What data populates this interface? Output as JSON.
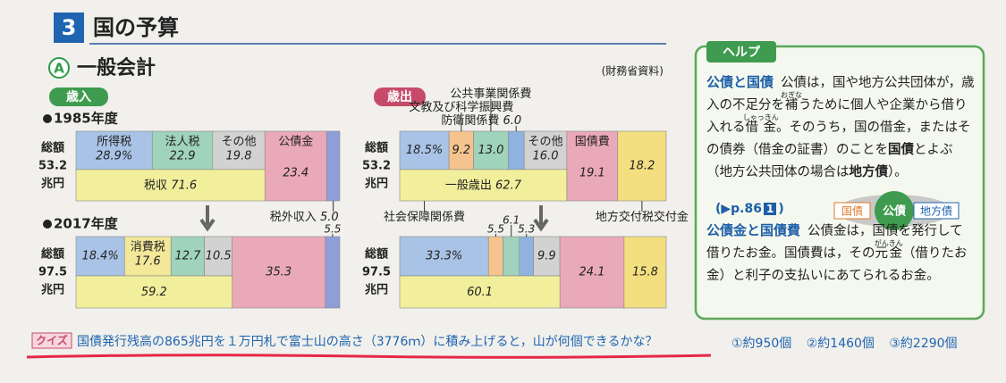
{
  "header": {
    "number": "3",
    "title": "国の予算"
  },
  "subsection": {
    "marker": "A",
    "title": "一般会計",
    "source": "(財務省資料)"
  },
  "revenue": {
    "tag": "歳入",
    "bars": [
      {
        "year": "1985年度",
        "total_label": "総額",
        "total": 53.2,
        "total_unit": "兆円",
        "segments": [
          {
            "name": "所得税",
            "value": 28.9,
            "value_label": "28.9%",
            "color": "#a9c3e6"
          },
          {
            "name": "法人税",
            "value": 22.9,
            "color": "#9fd3bb"
          },
          {
            "name": "その他",
            "value": 19.8,
            "color": "#d2d2d2"
          },
          {
            "name": "公債金",
            "value": 23.4,
            "color": "#eaa9b8"
          },
          {
            "name": "税外収入",
            "value": 5.0,
            "value_label": "5.0",
            "color": "#8e9ed8"
          }
        ],
        "subtotal": {
          "name": "税収",
          "value": 71.6,
          "color": "#f2ef9c"
        }
      },
      {
        "year": "2017年度",
        "total_label": "総額",
        "total": 97.5,
        "total_unit": "兆円",
        "segments": [
          {
            "value": 18.4,
            "value_label": "18.4%",
            "color": "#a9c3e6"
          },
          {
            "name": "消費税",
            "value": 17.6,
            "color": "#f3e89a"
          },
          {
            "value": 12.7,
            "color": "#9fd3bb"
          },
          {
            "value": 10.5,
            "color": "#d2d2d2"
          },
          {
            "value": 35.3,
            "color": "#eaa9b8"
          },
          {
            "value": 5.5,
            "color": "#8e9ed8"
          }
        ],
        "subtotal": {
          "value": 59.2,
          "color": "#f2ef9c"
        }
      }
    ]
  },
  "expenditure": {
    "tag": "歳出",
    "bars": [
      {
        "total_label": "総額",
        "total": 53.2,
        "total_unit": "兆円",
        "segments": [
          {
            "name": "社会保障関係費",
            "value": 18.5,
            "value_label": "18.5%",
            "color": "#a9c3e6"
          },
          {
            "name": "文教及び科学振興費",
            "value": 9.2,
            "color": "#f5c48e"
          },
          {
            "name": "公共事業関係費",
            "value": 13.0,
            "value_label": "13.0",
            "color": "#9fd3bb"
          },
          {
            "name": "防衛関係費",
            "value": 6.0,
            "value_label": "6.0",
            "color": "#8fb2de"
          },
          {
            "name": "その他",
            "value": 16.0,
            "value_label": "16.0",
            "color": "#d2d2d2"
          },
          {
            "name": "国債費",
            "value": 19.1,
            "color": "#eaa9b8"
          },
          {
            "name": "地方交付税交付金",
            "value": 18.2,
            "color": "#f3df80"
          }
        ],
        "subtotal": {
          "name": "一般歳出",
          "value": 62.7,
          "color": "#f2ef9c"
        }
      },
      {
        "total_label": "総額",
        "total": 97.5,
        "total_unit": "兆円",
        "segments": [
          {
            "value": 33.3,
            "value_label": "33.3%",
            "color": "#a9c3e6"
          },
          {
            "value": 5.5,
            "color": "#f5c48e"
          },
          {
            "value": 6.1,
            "color": "#9fd3bb"
          },
          {
            "value": 5.3,
            "color": "#8fb2de"
          },
          {
            "value": 9.9,
            "color": "#d2d2d2"
          },
          {
            "value": 24.1,
            "color": "#eaa9b8"
          },
          {
            "value": 15.8,
            "color": "#f3df80"
          }
        ],
        "subtotal": {
          "value": 60.1,
          "color": "#f2ef9c"
        }
      }
    ]
  },
  "help": {
    "title": "ヘルプ",
    "sections": [
      {
        "heading": "公債と国債",
        "parts": [
          {
            "text": "公債は，国や地方公共団体が，歳入の不足分を"
          },
          {
            "text": "補",
            "ruby": "おぎな"
          },
          {
            "text": "うために個人や企業から借り入れる"
          },
          {
            "text": "借金",
            "ruby": "しゃっきん"
          },
          {
            "text": "。そのうち，国の借金，またはその債券（借金の証書）のことを"
          },
          {
            "text": "国債",
            "bold": true
          },
          {
            "text": "とよぶ（地方公共団体の場合は"
          },
          {
            "text": "地方債",
            "bold": true
          },
          {
            "text": "）。"
          }
        ]
      },
      {
        "heading": "公債金と国債費",
        "parts": [
          {
            "text": "公債金は，国債を発行して借りたお金。国債費は，その"
          },
          {
            "text": "元金",
            "ruby": "がんきん"
          },
          {
            "text": "（借りたお金）と利子の支払いにあてられるお金。"
          }
        ]
      }
    ],
    "ref": [
      "(▶p.86",
      "1",
      ")"
    ],
    "diagram": {
      "left": "国債",
      "center": "公債",
      "right": "地方債"
    }
  },
  "quiz": {
    "tag": "クイズ",
    "question": "国債発行残高の865兆円を１万円札で富士山の高さ（3776ｍ）に積み上げると，山が何個できるかな？",
    "options": [
      "①約950個",
      "②約1460個",
      "③約2290個"
    ]
  }
}
